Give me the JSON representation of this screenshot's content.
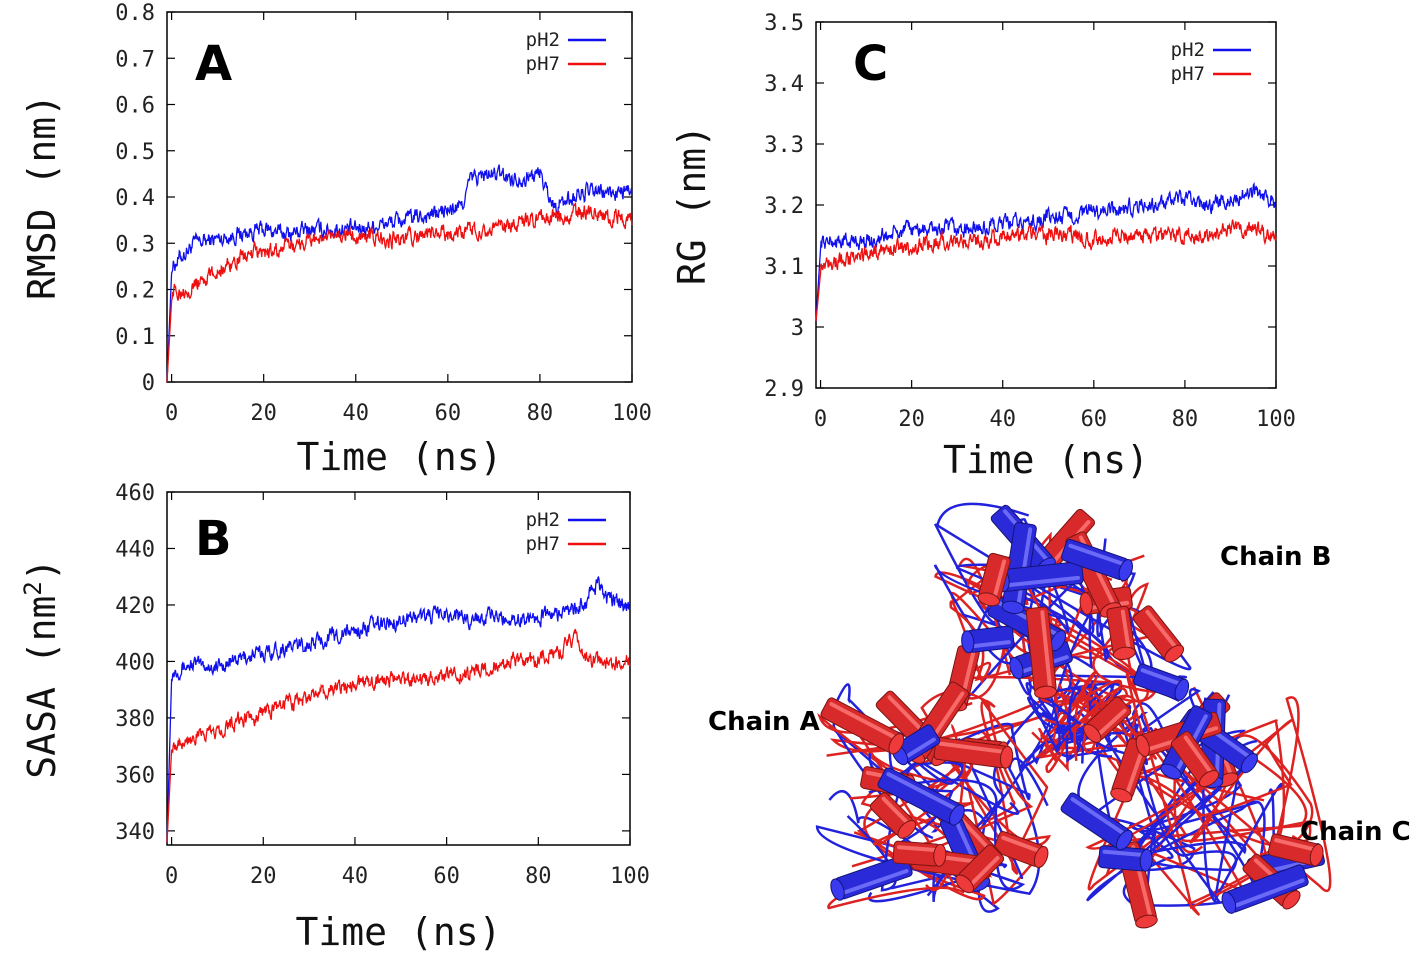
{
  "colors": {
    "pH2": "#1010ee",
    "pH7": "#ee1010"
  },
  "chart_data": [
    {
      "panel": "A",
      "type": "line",
      "xlabel": "Time (ns)",
      "ylabel": "RMSD (nm)",
      "xlim": [
        -1,
        100
      ],
      "ylim": [
        0,
        0.8
      ],
      "xticks": [
        0,
        20,
        40,
        60,
        80,
        100
      ],
      "yticks": [
        0,
        0.1,
        0.2,
        0.3,
        0.4,
        0.5,
        0.6,
        0.7,
        0.8
      ],
      "ytick_labels": [
        "0",
        "0.1",
        "0.2",
        "0.3",
        "0.4",
        "0.5",
        "0.6",
        "0.7",
        "0.8"
      ],
      "legend_position": "top-right",
      "series": [
        {
          "name": "pH2",
          "color": "#1010ee",
          "x": [
            0,
            2,
            5,
            10,
            15,
            20,
            25,
            30,
            35,
            40,
            45,
            50,
            55,
            60,
            63,
            65,
            70,
            75,
            80,
            83,
            85,
            90,
            95,
            100
          ],
          "y": [
            0.25,
            0.27,
            0.3,
            0.31,
            0.32,
            0.33,
            0.32,
            0.33,
            0.33,
            0.33,
            0.34,
            0.35,
            0.36,
            0.37,
            0.38,
            0.44,
            0.45,
            0.44,
            0.45,
            0.38,
            0.39,
            0.41,
            0.41,
            0.41
          ]
        },
        {
          "name": "pH7",
          "color": "#ee1010",
          "x": [
            0,
            2,
            5,
            10,
            15,
            20,
            25,
            30,
            35,
            40,
            45,
            50,
            55,
            60,
            65,
            70,
            75,
            80,
            85,
            90,
            95,
            100
          ],
          "y": [
            0.19,
            0.2,
            0.21,
            0.24,
            0.27,
            0.28,
            0.29,
            0.31,
            0.31,
            0.32,
            0.31,
            0.31,
            0.32,
            0.32,
            0.33,
            0.33,
            0.34,
            0.35,
            0.36,
            0.37,
            0.36,
            0.35
          ]
        }
      ]
    },
    {
      "panel": "B",
      "type": "line",
      "xlabel": "Time (ns)",
      "ylabel": "SASA (nm",
      "ylabel_sup": "2",
      "ylabel_end": ")",
      "xlim": [
        -1,
        100
      ],
      "ylim": [
        335,
        460
      ],
      "xticks": [
        0,
        20,
        40,
        60,
        80,
        100
      ],
      "yticks": [
        340,
        360,
        380,
        400,
        420,
        440,
        460
      ],
      "ytick_labels": [
        "340",
        "360",
        "380",
        "400",
        "420",
        "440",
        "460"
      ],
      "legend_position": "top-right",
      "series": [
        {
          "name": "pH2",
          "color": "#1010ee",
          "x": [
            0,
            2,
            5,
            10,
            15,
            20,
            25,
            30,
            35,
            40,
            45,
            50,
            55,
            60,
            65,
            70,
            75,
            80,
            85,
            90,
            93,
            95,
            100
          ],
          "y": [
            396,
            398,
            399,
            398,
            401,
            403,
            405,
            406,
            409,
            411,
            413,
            415,
            416,
            417,
            415,
            416,
            415,
            416,
            417,
            420,
            428,
            422,
            420
          ]
        },
        {
          "name": "pH7",
          "color": "#ee1010",
          "x": [
            0,
            2,
            5,
            10,
            15,
            20,
            25,
            30,
            35,
            40,
            45,
            50,
            55,
            60,
            65,
            70,
            75,
            80,
            85,
            88,
            90,
            95,
            100
          ],
          "y": [
            371,
            372,
            373,
            376,
            379,
            382,
            385,
            387,
            390,
            392,
            393,
            394,
            393,
            395,
            396,
            398,
            400,
            401,
            404,
            409,
            402,
            399,
            401
          ]
        }
      ]
    },
    {
      "panel": "C",
      "type": "line",
      "xlabel": "Time (ns)",
      "ylabel": "RG (nm)",
      "xlim": [
        -1,
        100
      ],
      "ylim": [
        2.9,
        3.5
      ],
      "xticks": [
        0,
        20,
        40,
        60,
        80,
        100
      ],
      "yticks": [
        2.9,
        3.0,
        3.1,
        3.2,
        3.3,
        3.4,
        3.5
      ],
      "ytick_labels": [
        "2.9",
        "3",
        "3.1",
        "3.2",
        "3.3",
        "3.4",
        "3.5"
      ],
      "legend_position": "top-right",
      "series": [
        {
          "name": "pH2",
          "color": "#1010ee",
          "x": [
            0,
            2,
            5,
            10,
            15,
            20,
            25,
            30,
            35,
            40,
            45,
            50,
            55,
            60,
            65,
            70,
            75,
            80,
            85,
            90,
            95,
            100
          ],
          "y": [
            3.14,
            3.14,
            3.14,
            3.14,
            3.15,
            3.16,
            3.16,
            3.16,
            3.16,
            3.17,
            3.17,
            3.18,
            3.18,
            3.19,
            3.19,
            3.2,
            3.2,
            3.21,
            3.2,
            3.21,
            3.22,
            3.21
          ]
        },
        {
          "name": "pH7",
          "color": "#ee1010",
          "x": [
            0,
            2,
            5,
            10,
            15,
            20,
            25,
            30,
            35,
            40,
            45,
            50,
            55,
            60,
            65,
            70,
            75,
            80,
            85,
            90,
            95,
            100
          ],
          "y": [
            3.1,
            3.11,
            3.11,
            3.12,
            3.13,
            3.13,
            3.14,
            3.14,
            3.14,
            3.15,
            3.15,
            3.15,
            3.15,
            3.14,
            3.15,
            3.15,
            3.15,
            3.15,
            3.15,
            3.16,
            3.16,
            3.15
          ]
        }
      ]
    }
  ],
  "structure": {
    "chain_labels": [
      "Chain B",
      "Chain A",
      "Chain C"
    ]
  }
}
